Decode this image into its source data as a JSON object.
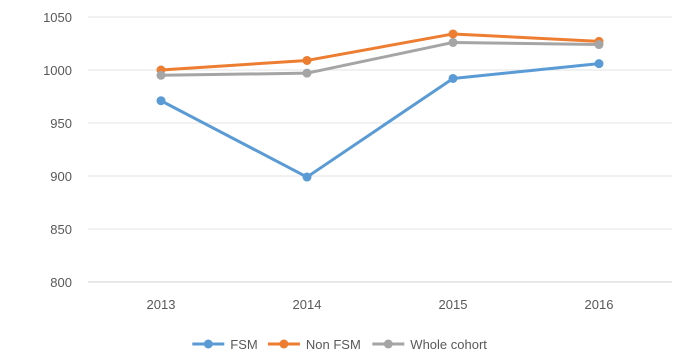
{
  "chart_data": {
    "type": "line",
    "categories": [
      "2013",
      "2014",
      "2015",
      "2016"
    ],
    "series": [
      {
        "name": "FSM",
        "color": "#5B9BD5",
        "values": [
          971,
          899,
          992,
          1006
        ]
      },
      {
        "name": "Non FSM",
        "color": "#ED7D31",
        "values": [
          1000,
          1009,
          1034,
          1027
        ]
      },
      {
        "name": "Whole cohort",
        "color": "#A5A5A5",
        "values": [
          995,
          997,
          1026,
          1024
        ]
      }
    ],
    "ylim": [
      800,
      1050
    ],
    "yticks": [
      "800",
      "850",
      "900",
      "950",
      "1000",
      "1050"
    ],
    "grid": true,
    "legend_position": "bottom"
  }
}
